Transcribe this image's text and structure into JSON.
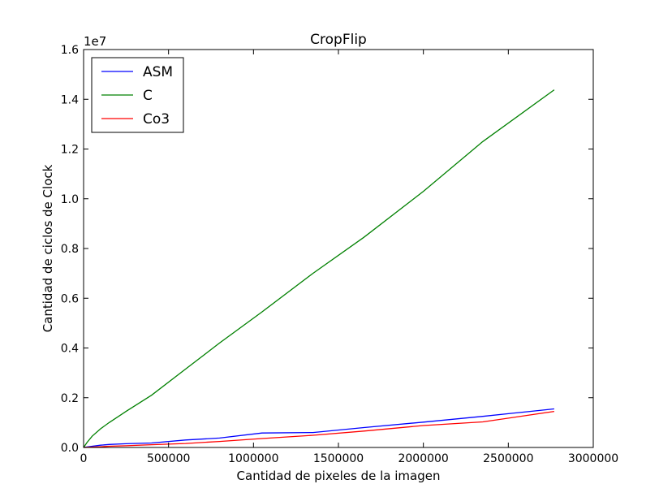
{
  "chart_data": {
    "type": "line",
    "title": "CropFlip",
    "xlabel": "Cantidad de pixeles de la imagen",
    "ylabel": "Cantidad de ciclos de Clock",
    "y_offset_label": "1e7",
    "xlim": [
      0,
      3000000
    ],
    "ylim": [
      0,
      16000000
    ],
    "x_ticks": [
      0,
      500000,
      1000000,
      1500000,
      2000000,
      2500000,
      3000000
    ],
    "x_tick_labels": [
      "0",
      "500000",
      "1000000",
      "1500000",
      "2000000",
      "2500000",
      "3000000"
    ],
    "y_ticks": [
      0,
      2000000,
      4000000,
      6000000,
      8000000,
      10000000,
      12000000,
      14000000,
      16000000
    ],
    "y_tick_labels": [
      "0.0",
      "0.2",
      "0.4",
      "0.6",
      "0.8",
      "1.0",
      "1.2",
      "1.4",
      "1.6"
    ],
    "grid": false,
    "legend_position": "top-left",
    "series": [
      {
        "name": "ASM",
        "color": "#0000ff",
        "x": [
          0,
          20000,
          50000,
          100000,
          150000,
          250000,
          400000,
          600000,
          800000,
          1050000,
          1350000,
          1650000,
          2000000,
          2350000,
          2770000
        ],
        "y": [
          0,
          20000,
          50000,
          90000,
          120000,
          150000,
          180000,
          300000,
          380000,
          580000,
          600000,
          800000,
          1020000,
          1250000,
          1550000
        ]
      },
      {
        "name": "C",
        "color": "#008000",
        "x": [
          0,
          20000,
          50000,
          100000,
          150000,
          250000,
          400000,
          600000,
          800000,
          1050000,
          1350000,
          1650000,
          2000000,
          2350000,
          2770000
        ],
        "y": [
          0,
          200000,
          450000,
          750000,
          1000000,
          1450000,
          2100000,
          3150000,
          4200000,
          5450000,
          7000000,
          8450000,
          10300000,
          12300000,
          14380000
        ]
      },
      {
        "name": "Co3",
        "color": "#ff0000",
        "x": [
          0,
          20000,
          50000,
          100000,
          150000,
          250000,
          400000,
          600000,
          800000,
          1050000,
          1350000,
          1650000,
          2000000,
          2350000,
          2770000
        ],
        "y": [
          0,
          5000,
          15000,
          30000,
          50000,
          70000,
          110000,
          160000,
          240000,
          360000,
          490000,
          660000,
          880000,
          1030000,
          1450000
        ]
      }
    ]
  }
}
